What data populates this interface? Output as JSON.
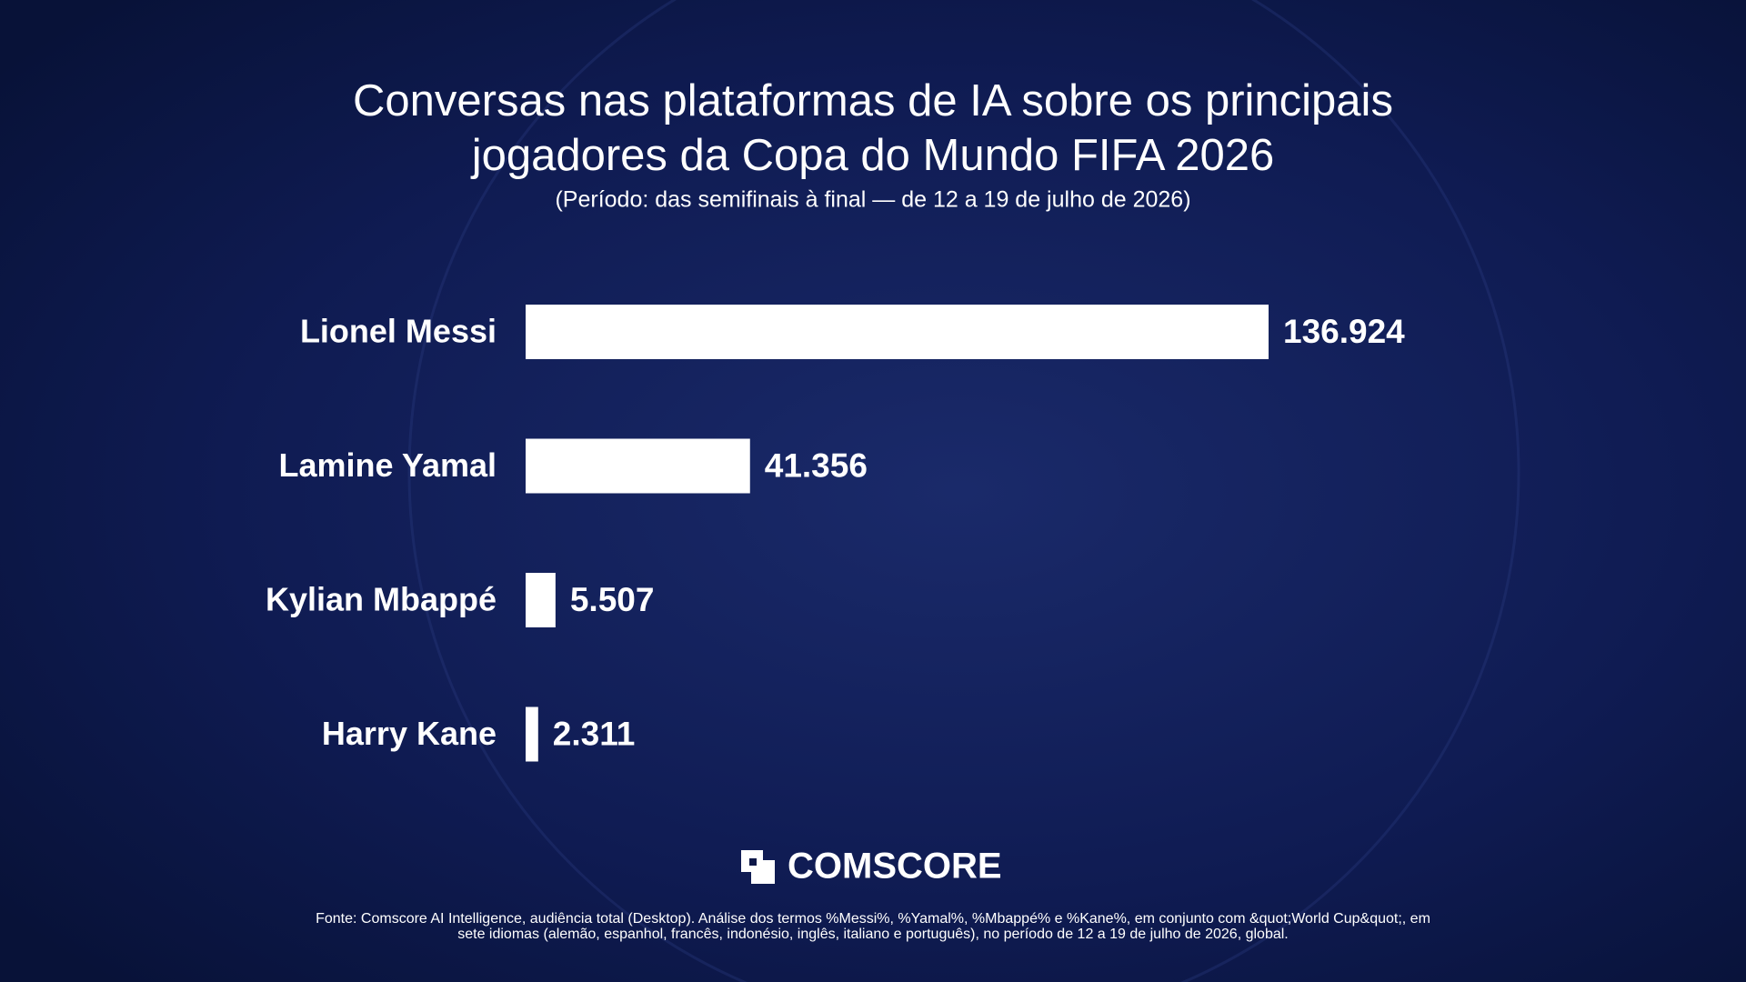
{
  "chart_data": {
    "type": "bar",
    "orientation": "horizontal",
    "title": [
      "Conversas nas plataformas de IA sobre os principais",
      "jogadores da Copa do Mundo FIFA 2026"
    ],
    "subtitle": "(Período: das semifinais à final — de 12 a 19 de julho de 2026)",
    "categories": [
      "Lionel Messi",
      "Lamine Yamal",
      "Kylian Mbappé",
      "Harry Kane"
    ],
    "values": [
      136924,
      41356,
      5507,
      2311
    ],
    "value_labels": [
      "136.924",
      "41.356",
      "5.507",
      "2.311"
    ],
    "color": "#ffffff"
  },
  "logo": "COMSCORE",
  "source": [
    "Fonte: Comscore AI Intelligence, audiência total (Desktop). Análise dos termos %Messi%, %Yamal%, %Mbappé% e %Kane%, em conjunto com &quot;World Cup&quot;, em",
    "sete idiomas (alemão, espanhol, francês, indonésio, inglês, italiano e português), no período de 12 a 19 de julho de 2026, global."
  ]
}
